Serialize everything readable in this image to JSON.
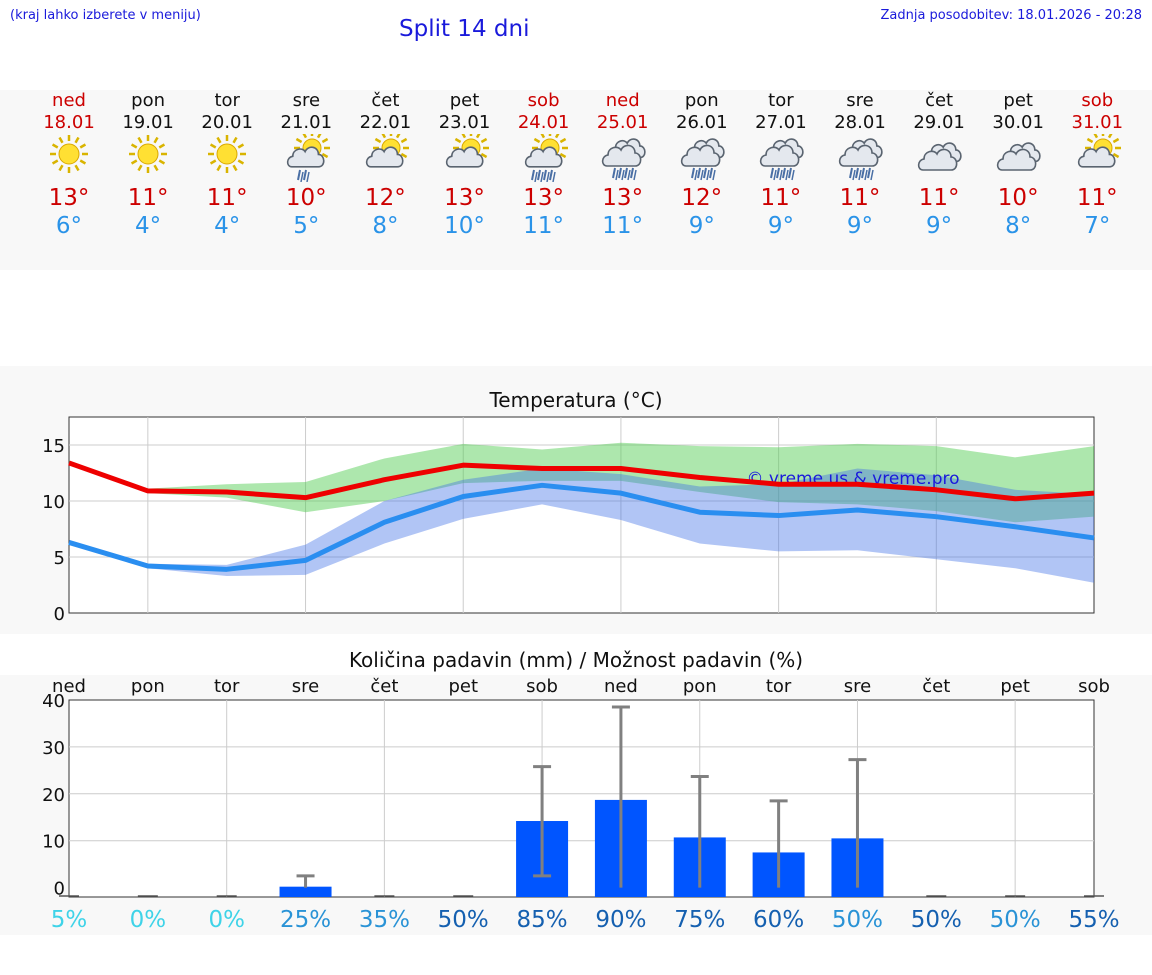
{
  "header": {
    "menu_hint": "(kraj lahko izberete v meniju)",
    "title": "Split 14 dni",
    "updated": "Zadnja posodobitev: 18.01.2026 - 20:28"
  },
  "forecast": [
    {
      "day": "ned",
      "date": "18.01",
      "weekend": true,
      "icon": "sun-icon",
      "tmax": "13°",
      "tmin": "6°"
    },
    {
      "day": "pon",
      "date": "19.01",
      "weekend": false,
      "icon": "sun-icon",
      "tmax": "11°",
      "tmin": "4°"
    },
    {
      "day": "tor",
      "date": "20.01",
      "weekend": false,
      "icon": "sun-icon",
      "tmax": "11°",
      "tmin": "4°"
    },
    {
      "day": "sre",
      "date": "21.01",
      "weekend": false,
      "icon": "sun-cloud-light-rain-icon",
      "tmax": "10°",
      "tmin": "5°"
    },
    {
      "day": "čet",
      "date": "22.01",
      "weekend": false,
      "icon": "sun-cloud-icon",
      "tmax": "12°",
      "tmin": "8°"
    },
    {
      "day": "pet",
      "date": "23.01",
      "weekend": false,
      "icon": "sun-cloud-icon",
      "tmax": "13°",
      "tmin": "10°"
    },
    {
      "day": "sob",
      "date": "24.01",
      "weekend": true,
      "icon": "sun-cloud-rain-icon",
      "tmax": "13°",
      "tmin": "11°"
    },
    {
      "day": "ned",
      "date": "25.01",
      "weekend": true,
      "icon": "cloud-rain-icon",
      "tmax": "13°",
      "tmin": "11°"
    },
    {
      "day": "pon",
      "date": "26.01",
      "weekend": false,
      "icon": "cloud-rain-icon",
      "tmax": "12°",
      "tmin": "9°"
    },
    {
      "day": "tor",
      "date": "27.01",
      "weekend": false,
      "icon": "cloud-rain-icon",
      "tmax": "11°",
      "tmin": "9°"
    },
    {
      "day": "sre",
      "date": "28.01",
      "weekend": false,
      "icon": "cloud-rain-icon",
      "tmax": "11°",
      "tmin": "9°"
    },
    {
      "day": "čet",
      "date": "29.01",
      "weekend": false,
      "icon": "cloud-icon",
      "tmax": "11°",
      "tmin": "9°"
    },
    {
      "day": "pet",
      "date": "30.01",
      "weekend": false,
      "icon": "cloud-icon",
      "tmax": "10°",
      "tmin": "8°"
    },
    {
      "day": "sob",
      "date": "31.01",
      "weekend": true,
      "icon": "sun-cloud-icon",
      "tmax": "11°",
      "tmin": "7°"
    }
  ],
  "chart_data": [
    {
      "type": "line",
      "title": "Temperatura (°C)",
      "watermark": "© vreme.us & vreme.pro",
      "ylim": [
        0,
        17.5
      ],
      "yticks": [
        "0",
        "5",
        "10",
        "15"
      ],
      "x": [
        0,
        1,
        2,
        3,
        4,
        5,
        6,
        7,
        8,
        9,
        10,
        11,
        12,
        13
      ],
      "series": [
        {
          "name": "max",
          "color": "#ee0000",
          "values": [
            13.4,
            10.9,
            10.8,
            10.3,
            11.9,
            13.2,
            12.9,
            12.9,
            12.1,
            11.5,
            11.5,
            11.0,
            10.2,
            10.7
          ]
        },
        {
          "name": "max_band_low",
          "values": [
            13.2,
            10.7,
            10.3,
            9.0,
            10.0,
            11.6,
            11.8,
            11.8,
            10.8,
            9.9,
            9.7,
            9.1,
            8.1,
            8.6
          ]
        },
        {
          "name": "max_band_high",
          "values": [
            13.6,
            11.1,
            11.5,
            11.7,
            13.8,
            15.1,
            14.6,
            15.2,
            14.9,
            14.8,
            15.1,
            14.9,
            13.9,
            14.9
          ]
        },
        {
          "name": "min",
          "color": "#2a8ef0",
          "values": [
            6.3,
            4.2,
            3.9,
            4.7,
            8.1,
            10.4,
            11.4,
            10.7,
            9.0,
            8.7,
            9.2,
            8.6,
            7.7,
            6.7
          ]
        },
        {
          "name": "min_band_low",
          "values": [
            6.1,
            4.0,
            3.3,
            3.4,
            6.2,
            8.4,
            9.7,
            8.3,
            6.2,
            5.5,
            5.6,
            4.8,
            4.0,
            2.7
          ]
        },
        {
          "name": "min_band_high",
          "values": [
            6.5,
            4.4,
            4.3,
            6.1,
            10.0,
            11.9,
            12.9,
            12.4,
            11.3,
            11.5,
            12.9,
            12.3,
            11.0,
            10.6
          ]
        }
      ],
      "grid": true
    },
    {
      "type": "bar",
      "title": "Količina padavin (mm) / Možnost padavin (%)",
      "categories": [
        "ned",
        "pon",
        "tor",
        "sre",
        "čet",
        "pet",
        "sob",
        "ned",
        "pon",
        "tor",
        "sre",
        "čet",
        "pet",
        "sob"
      ],
      "ylim": [
        -2,
        40
      ],
      "yticks": [
        "0",
        "10",
        "20",
        "30",
        "40"
      ],
      "values": [
        0,
        0,
        0,
        0.2,
        0,
        0,
        14.2,
        18.7,
        10.7,
        7.5,
        10.5,
        0,
        0,
        0
      ],
      "error_low": [
        0,
        0,
        0,
        0,
        0,
        0,
        2.5,
        0,
        0,
        0,
        0,
        0,
        0,
        0
      ],
      "error_high": [
        0,
        0,
        0,
        2.5,
        0,
        0,
        25.8,
        38.5,
        23.7,
        18.5,
        27.3,
        0,
        0,
        0
      ],
      "probability": [
        "5%",
        "0%",
        "0%",
        "25%",
        "35%",
        "50%",
        "85%",
        "90%",
        "75%",
        "60%",
        "50%",
        "50%",
        "50%",
        "55%"
      ],
      "probability_colors": [
        "#3fd3e8",
        "#3fd3e8",
        "#3fd3e8",
        "#2a93d6",
        "#2a93d6",
        "#1560b0",
        "#1560b0",
        "#1560b0",
        "#1560b0",
        "#1560b0",
        "#2a93d6",
        "#1560b0",
        "#2a93d6",
        "#1560b0"
      ],
      "bar_color": "#0055ff",
      "error_color": "#808080",
      "grid": true
    }
  ]
}
